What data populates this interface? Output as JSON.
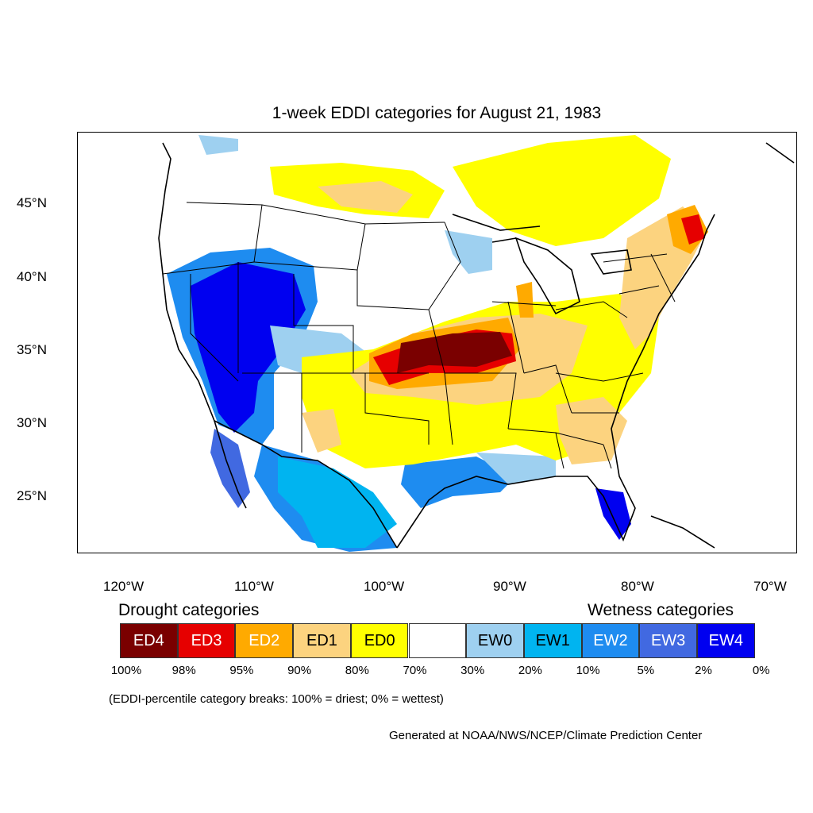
{
  "title": "1-week EDDI categories for August 21, 1983",
  "lat_labels": [
    "45°N",
    "40°N",
    "35°N",
    "30°N",
    "25°N"
  ],
  "lon_labels": [
    "120°W",
    "110°W",
    "100°W",
    "90°W",
    "80°W",
    "70°W"
  ],
  "legend": {
    "drought_heading": "Drought categories",
    "wetness_heading": "Wetness categories",
    "categories": [
      {
        "label": "ED4",
        "color": "#7a0000",
        "text_color": "#ffffff"
      },
      {
        "label": "ED3",
        "color": "#e60000",
        "text_color": "#ffffff"
      },
      {
        "label": "ED2",
        "color": "#ffaa00",
        "text_color": "#ffffff"
      },
      {
        "label": "ED1",
        "color": "#fcd37f",
        "text_color": "#000000"
      },
      {
        "label": "ED0",
        "color": "#ffff00",
        "text_color": "#000000"
      },
      {
        "label": "",
        "color": "#ffffff",
        "text_color": "#000000"
      },
      {
        "label": "EW0",
        "color": "#9ed0f0",
        "text_color": "#000000"
      },
      {
        "label": "EW1",
        "color": "#00b4f0",
        "text_color": "#000000"
      },
      {
        "label": "EW2",
        "color": "#1e8cf0",
        "text_color": "#ffffff"
      },
      {
        "label": "EW3",
        "color": "#4169e1",
        "text_color": "#ffffff"
      },
      {
        "label": "EW4",
        "color": "#0000f0",
        "text_color": "#ffffff"
      }
    ],
    "breaks": [
      "100%",
      "98%",
      "95%",
      "90%",
      "80%",
      "70%",
      "30%",
      "20%",
      "10%",
      "5%",
      "2%",
      "0%"
    ]
  },
  "note": "(EDDI-percentile category breaks: 100% = driest; 0% = wettest)",
  "credit": "Generated at NOAA/NWS/NCEP/Climate Prediction Center"
}
